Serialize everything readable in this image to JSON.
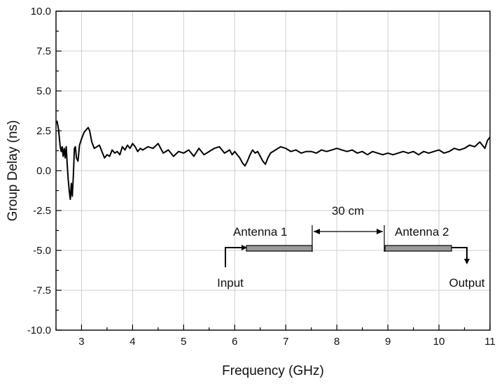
{
  "chart_data": {
    "type": "line",
    "title": "",
    "xlabel": "Frequency (GHz)",
    "ylabel": "Group Delay (ns)",
    "xlim": [
      2.5,
      11
    ],
    "ylim": [
      -10,
      10
    ],
    "grid": true,
    "x_ticks": [
      "3",
      "4",
      "5",
      "6",
      "7",
      "8",
      "9",
      "10",
      "11"
    ],
    "y_ticks": [
      "10.0",
      "7.5",
      "5.0",
      "2.5",
      "0.0",
      "-2.5",
      "-5.0",
      "-7.5",
      "-10.0"
    ],
    "series": [
      {
        "name": "",
        "color": "#000000",
        "points": [
          [
            2.5,
            3.0
          ],
          [
            2.52,
            3.1
          ],
          [
            2.55,
            2.6
          ],
          [
            2.58,
            1.6
          ],
          [
            2.6,
            1.2
          ],
          [
            2.62,
            1.5
          ],
          [
            2.64,
            0.9
          ],
          [
            2.66,
            1.4
          ],
          [
            2.68,
            0.8
          ],
          [
            2.7,
            1.5
          ],
          [
            2.72,
            0.4
          ],
          [
            2.74,
            -0.6
          ],
          [
            2.76,
            -1.3
          ],
          [
            2.78,
            -1.8
          ],
          [
            2.8,
            -0.8
          ],
          [
            2.82,
            -1.6
          ],
          [
            2.84,
            -0.3
          ],
          [
            2.86,
            1.4
          ],
          [
            2.88,
            1.5
          ],
          [
            2.9,
            0.8
          ],
          [
            2.93,
            0.6
          ],
          [
            2.96,
            1.6
          ],
          [
            3.0,
            2.0
          ],
          [
            3.05,
            2.4
          ],
          [
            3.1,
            2.6
          ],
          [
            3.13,
            2.7
          ],
          [
            3.16,
            2.5
          ],
          [
            3.2,
            1.8
          ],
          [
            3.25,
            1.4
          ],
          [
            3.3,
            1.5
          ],
          [
            3.35,
            1.6
          ],
          [
            3.4,
            1.2
          ],
          [
            3.45,
            0.8
          ],
          [
            3.5,
            1.0
          ],
          [
            3.55,
            0.9
          ],
          [
            3.6,
            1.3
          ],
          [
            3.65,
            1.1
          ],
          [
            3.7,
            1.2
          ],
          [
            3.75,
            1.0
          ],
          [
            3.8,
            1.5
          ],
          [
            3.85,
            1.3
          ],
          [
            3.9,
            1.6
          ],
          [
            3.95,
            1.4
          ],
          [
            4.0,
            1.7
          ],
          [
            4.05,
            1.5
          ],
          [
            4.1,
            1.2
          ],
          [
            4.15,
            1.4
          ],
          [
            4.2,
            1.3
          ],
          [
            4.3,
            1.5
          ],
          [
            4.4,
            1.4
          ],
          [
            4.5,
            1.7
          ],
          [
            4.6,
            1.1
          ],
          [
            4.7,
            1.3
          ],
          [
            4.8,
            0.9
          ],
          [
            4.9,
            1.2
          ],
          [
            5.0,
            1.1
          ],
          [
            5.1,
            1.3
          ],
          [
            5.2,
            0.9
          ],
          [
            5.3,
            1.4
          ],
          [
            5.4,
            1.0
          ],
          [
            5.5,
            1.2
          ],
          [
            5.6,
            1.4
          ],
          [
            5.7,
            1.5
          ],
          [
            5.8,
            1.1
          ],
          [
            5.9,
            1.3
          ],
          [
            5.95,
            1.0
          ],
          [
            6.0,
            1.2
          ],
          [
            6.05,
            1.0
          ],
          [
            6.1,
            0.8
          ],
          [
            6.15,
            0.5
          ],
          [
            6.2,
            0.3
          ],
          [
            6.25,
            0.6
          ],
          [
            6.3,
            1.0
          ],
          [
            6.35,
            1.3
          ],
          [
            6.4,
            1.1
          ],
          [
            6.45,
            1.2
          ],
          [
            6.5,
            0.9
          ],
          [
            6.55,
            0.6
          ],
          [
            6.6,
            0.4
          ],
          [
            6.65,
            0.8
          ],
          [
            6.7,
            1.1
          ],
          [
            6.8,
            1.3
          ],
          [
            6.9,
            1.5
          ],
          [
            7.0,
            1.4
          ],
          [
            7.1,
            1.2
          ],
          [
            7.2,
            1.3
          ],
          [
            7.3,
            1.1
          ],
          [
            7.4,
            1.2
          ],
          [
            7.5,
            1.2
          ],
          [
            7.6,
            1.1
          ],
          [
            7.7,
            1.3
          ],
          [
            7.8,
            1.2
          ],
          [
            7.9,
            1.3
          ],
          [
            8.0,
            1.4
          ],
          [
            8.1,
            1.3
          ],
          [
            8.2,
            1.2
          ],
          [
            8.3,
            1.3
          ],
          [
            8.4,
            1.1
          ],
          [
            8.5,
            1.2
          ],
          [
            8.6,
            1.0
          ],
          [
            8.7,
            1.2
          ],
          [
            8.8,
            1.1
          ],
          [
            8.9,
            1.0
          ],
          [
            9.0,
            1.1
          ],
          [
            9.1,
            1.0
          ],
          [
            9.2,
            1.1
          ],
          [
            9.3,
            1.2
          ],
          [
            9.4,
            1.1
          ],
          [
            9.5,
            1.2
          ],
          [
            9.6,
            1.0
          ],
          [
            9.7,
            1.2
          ],
          [
            9.8,
            1.1
          ],
          [
            9.9,
            1.2
          ],
          [
            10.0,
            1.3
          ],
          [
            10.1,
            1.1
          ],
          [
            10.2,
            1.2
          ],
          [
            10.3,
            1.4
          ],
          [
            10.4,
            1.3
          ],
          [
            10.5,
            1.4
          ],
          [
            10.6,
            1.6
          ],
          [
            10.7,
            1.5
          ],
          [
            10.8,
            1.8
          ],
          [
            10.85,
            1.6
          ],
          [
            10.9,
            1.4
          ],
          [
            10.95,
            1.9
          ],
          [
            11.0,
            2.1
          ]
        ]
      }
    ],
    "annotations": {
      "antenna1": "Antenna 1",
      "antenna2": "Antenna 2",
      "distance": "30 cm",
      "input": "Input",
      "output": "Output"
    }
  }
}
